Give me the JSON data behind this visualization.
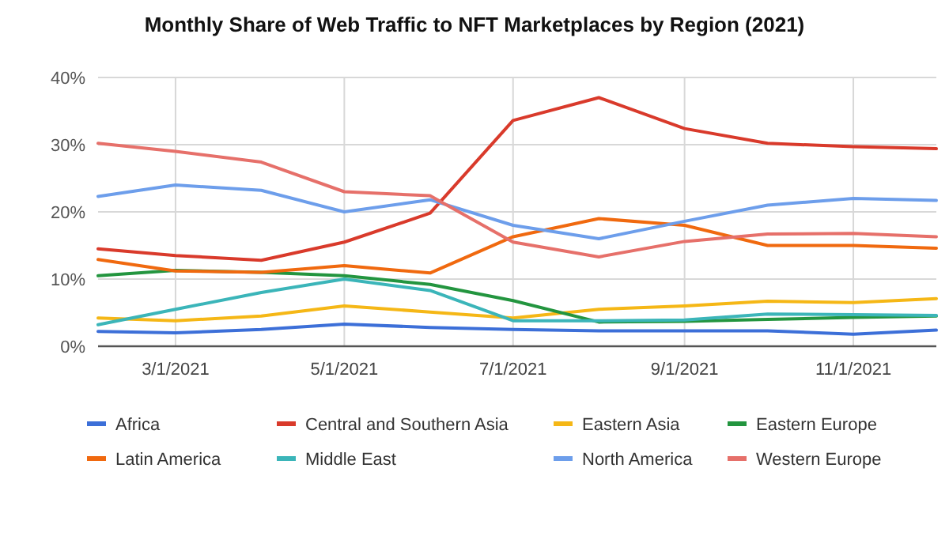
{
  "chart_data": {
    "type": "line",
    "title": "Monthly Share of Web Traffic to NFT Marketplaces by Region (2021)",
    "x": [
      "2021-02-01",
      "2021-03-01",
      "2021-04-01",
      "2021-05-01",
      "2021-06-01",
      "2021-07-01",
      "2021-08-01",
      "2021-09-01",
      "2021-10-01",
      "2021-11-01",
      "2021-12-01"
    ],
    "xlim": [
      "2021-02-01",
      "2021-12-01"
    ],
    "xticks": [
      {
        "value": "2021-03-01",
        "label": "3/1/2021"
      },
      {
        "value": "2021-05-01",
        "label": "5/1/2021"
      },
      {
        "value": "2021-07-01",
        "label": "7/1/2021"
      },
      {
        "value": "2021-09-01",
        "label": "9/1/2021"
      },
      {
        "value": "2021-11-01",
        "label": "11/1/2021"
      }
    ],
    "ylim": [
      0,
      40
    ],
    "yticks": [
      {
        "value": 0,
        "label": "0%"
      },
      {
        "value": 10,
        "label": "10%"
      },
      {
        "value": 20,
        "label": "20%"
      },
      {
        "value": 30,
        "label": "30%"
      },
      {
        "value": 40,
        "label": "40%"
      }
    ],
    "grid": true,
    "legend": "bottom",
    "marker": "none",
    "line_style": "solid",
    "series": [
      {
        "name": "Africa",
        "color": "#3c6fd8",
        "values": [
          2.2,
          2,
          2.5,
          3.3,
          2.8,
          2.5,
          2.3,
          2.3,
          2.3,
          1.8,
          2.4
        ]
      },
      {
        "name": "Central and Southern Asia",
        "color": "#d93a2b",
        "values": [
          14.5,
          13.5,
          12.8,
          15.5,
          19.8,
          33.6,
          37,
          32.4,
          30.2,
          29.7,
          29.4
        ]
      },
      {
        "name": "Eastern Asia",
        "color": "#f5b716",
        "values": [
          4.2,
          3.8,
          4.5,
          6,
          5.1,
          4.2,
          5.5,
          6,
          6.7,
          6.5,
          7.1
        ]
      },
      {
        "name": "Eastern Europe",
        "color": "#23953f",
        "values": [
          10.5,
          11.3,
          11,
          10.5,
          9.2,
          6.8,
          3.6,
          3.7,
          4,
          4.3,
          4.5
        ]
      },
      {
        "name": "Latin America",
        "color": "#f0690f",
        "values": [
          12.9,
          11.2,
          11,
          12,
          10.9,
          16.3,
          19,
          18,
          15,
          15,
          14.6
        ]
      },
      {
        "name": "Middle East",
        "color": "#3bb5b9",
        "values": [
          3.2,
          5.5,
          8,
          10,
          8.3,
          3.8,
          3.8,
          3.9,
          4.8,
          4.7,
          4.6
        ]
      },
      {
        "name": "North America",
        "color": "#6d9eeb",
        "values": [
          22.3,
          24,
          23.2,
          20,
          21.8,
          18,
          16,
          18.6,
          21,
          22,
          21.7
        ]
      },
      {
        "name": "Western Europe",
        "color": "#e6706a",
        "values": [
          30.2,
          29,
          27.4,
          23,
          22.4,
          15.5,
          13.3,
          15.6,
          16.7,
          16.8,
          16.3
        ]
      }
    ]
  }
}
